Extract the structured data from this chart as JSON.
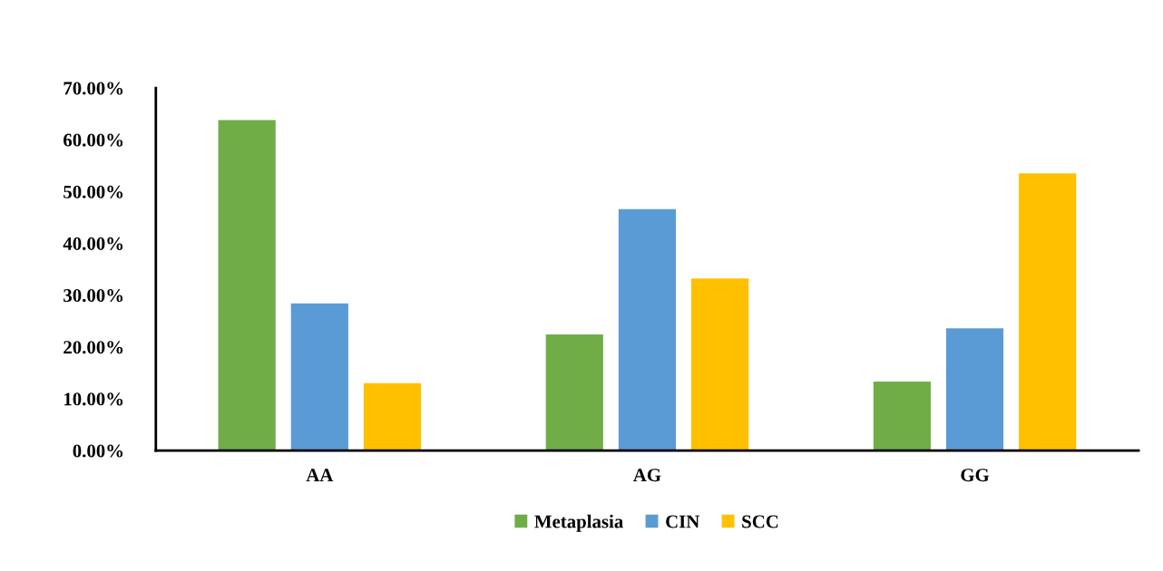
{
  "chart_data": {
    "type": "bar",
    "categories": [
      "AA",
      "AG",
      "GG"
    ],
    "series": [
      {
        "name": "Metaplasia",
        "color": "#70ad47",
        "values": [
          63.8,
          22.4,
          13.3
        ]
      },
      {
        "name": "CIN",
        "color": "#5b9bd5",
        "values": [
          28.4,
          46.6,
          23.6
        ]
      },
      {
        "name": "SCC",
        "color": "#ffc000",
        "values": [
          13,
          33.2,
          53.5
        ]
      }
    ],
    "ylim": [
      0,
      70
    ],
    "yticks": [
      {
        "value": 0,
        "label": "0.00%"
      },
      {
        "value": 10,
        "label": "10.00%"
      },
      {
        "value": 20,
        "label": "20.00%"
      },
      {
        "value": 30,
        "label": "30.00%"
      },
      {
        "value": 40,
        "label": "40.00%"
      },
      {
        "value": 50,
        "label": "50.00%"
      },
      {
        "value": 60,
        "label": "60.00%"
      },
      {
        "value": 70,
        "label": "70.00%"
      }
    ],
    "grid": false,
    "legend": "bottom"
  }
}
